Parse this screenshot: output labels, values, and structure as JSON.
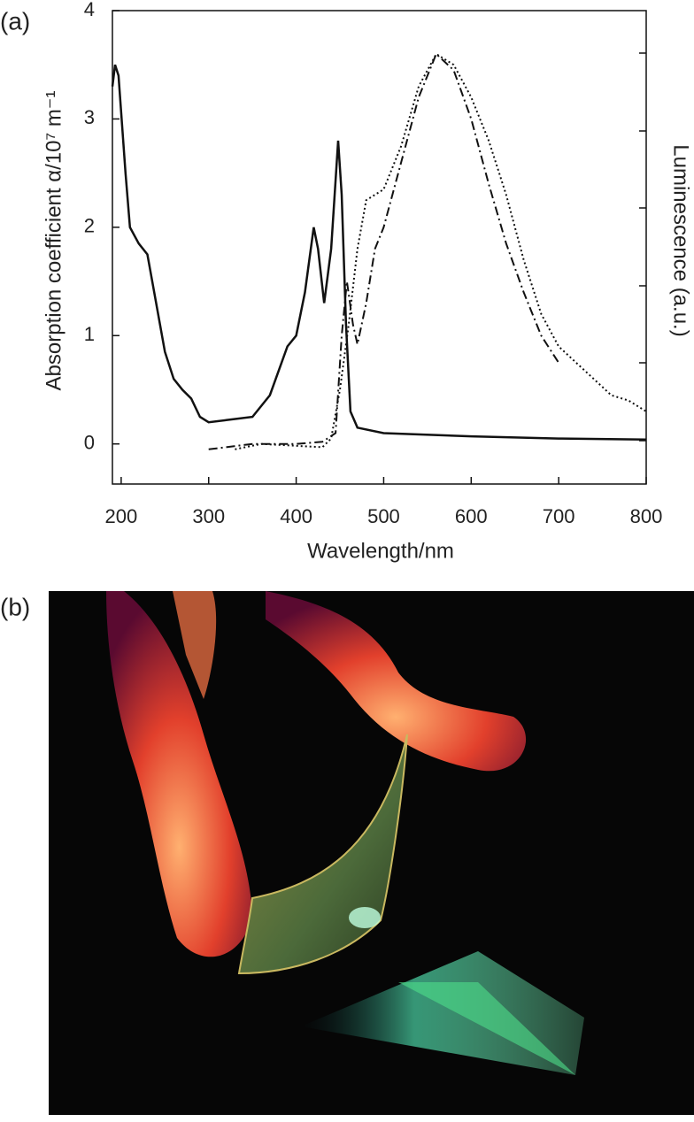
{
  "panel_a": {
    "label": "(a)"
  },
  "panel_b": {
    "label": "(b)"
  },
  "chart_data": {
    "type": "line",
    "xlabel": "Wavelength/nm",
    "ylabel": "Absorption coefficient α/10⁷ m⁻¹",
    "y2label": "Luminescence (a.u.)",
    "xlim": [
      190,
      800
    ],
    "ylim": [
      -0.37,
      4.0
    ],
    "xticks": [
      200,
      300,
      400,
      500,
      600,
      700,
      800
    ],
    "yticks": [
      0,
      1,
      2,
      3,
      4
    ],
    "series": [
      {
        "color": "#111111",
        "style": "solid",
        "x": [
          190,
          193,
          197,
          205,
          210,
          220,
          230,
          240,
          250,
          260,
          270,
          280,
          290,
          300,
          320,
          350,
          370,
          390,
          400,
          410,
          420,
          425,
          432,
          440,
          448,
          452,
          457,
          462,
          470,
          500,
          600,
          700,
          800
        ],
        "values": [
          3.3,
          3.5,
          3.4,
          2.5,
          2.0,
          1.85,
          1.75,
          1.3,
          0.85,
          0.6,
          0.5,
          0.42,
          0.25,
          0.2,
          0.22,
          0.25,
          0.45,
          0.9,
          1.0,
          1.4,
          2.0,
          1.8,
          1.3,
          1.8,
          2.8,
          2.3,
          1.1,
          0.3,
          0.15,
          0.1,
          0.07,
          0.05,
          0.04
        ]
      },
      {
        "color": "#111111",
        "style": "dashdot",
        "x": [
          300,
          350,
          400,
          430,
          445,
          452,
          458,
          465,
          470,
          480,
          490,
          500,
          520,
          540,
          560,
          580,
          600,
          620,
          640,
          660,
          680,
          700
        ],
        "values": [
          -0.05,
          0.0,
          0.0,
          0.02,
          0.1,
          1.0,
          1.5,
          1.1,
          0.92,
          1.3,
          1.8,
          2.0,
          2.6,
          3.2,
          3.6,
          3.45,
          3.0,
          2.4,
          1.85,
          1.4,
          1.0,
          0.75
        ]
      },
      {
        "color": "#111111",
        "style": "dotted",
        "x": [
          330,
          360,
          430,
          440,
          450,
          460,
          470,
          480,
          490,
          500,
          520,
          540,
          560,
          580,
          600,
          620,
          640,
          660,
          680,
          700,
          720,
          740,
          760,
          780,
          800
        ],
        "values": [
          -0.05,
          0.0,
          -0.03,
          0.05,
          0.5,
          1.1,
          1.8,
          2.25,
          2.3,
          2.35,
          2.75,
          3.3,
          3.6,
          3.5,
          3.2,
          2.8,
          2.3,
          1.7,
          1.2,
          0.9,
          0.75,
          0.6,
          0.45,
          0.4,
          0.3
        ]
      }
    ]
  }
}
